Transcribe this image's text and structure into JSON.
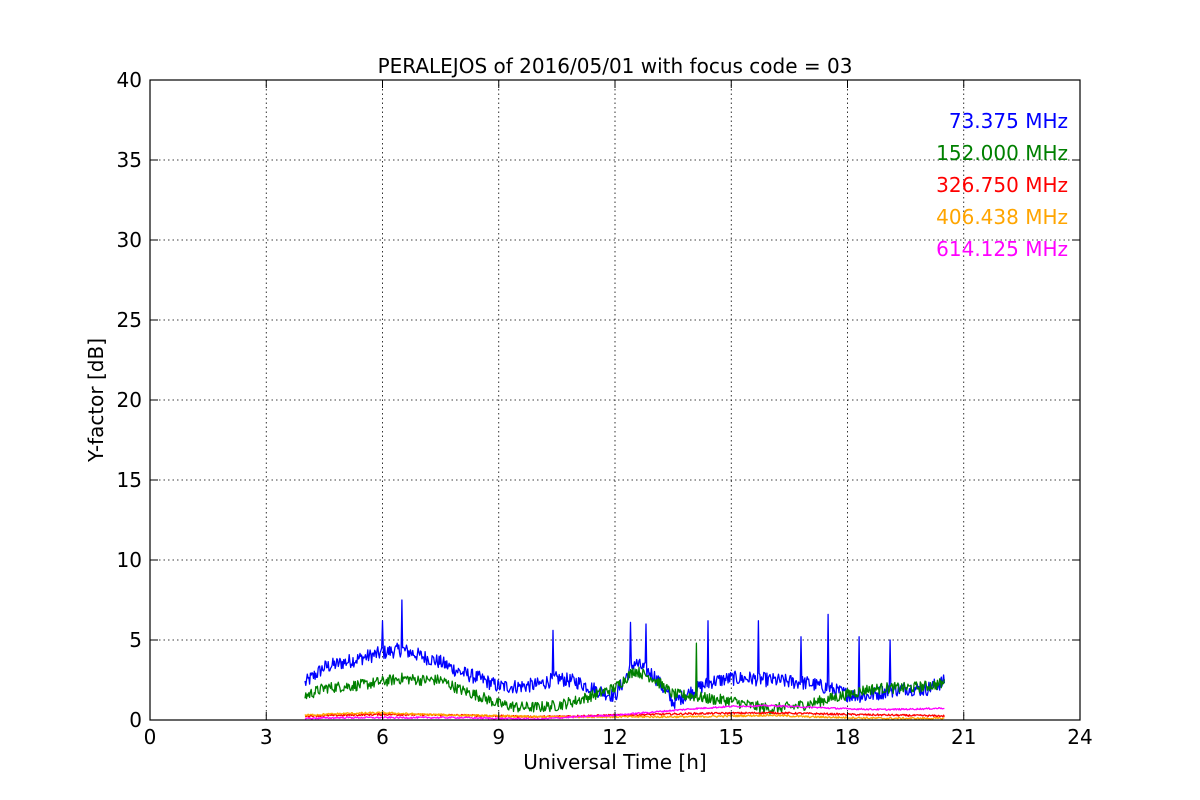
{
  "chart_data": {
    "type": "line",
    "title": "PERALEJOS of 2016/05/01 with focus code = 03",
    "xlabel": "Universal Time [h]",
    "ylabel": "Y-factor [dB]",
    "xlim": [
      0,
      24
    ],
    "ylim": [
      0,
      40
    ],
    "xticks": [
      0,
      3,
      6,
      9,
      12,
      15,
      18,
      21,
      24
    ],
    "yticks": [
      0,
      5,
      10,
      15,
      20,
      25,
      30,
      35,
      40
    ],
    "grid": true,
    "legend_position": "top-right",
    "series": [
      {
        "name": "73.375 MHz",
        "color": "#0000ff",
        "x": [
          4.0,
          4.5,
          5.0,
          5.5,
          6.0,
          6.5,
          7.0,
          7.5,
          8.0,
          8.5,
          9.0,
          9.5,
          10.0,
          10.5,
          11.0,
          11.5,
          12.0,
          12.5,
          13.0,
          13.5,
          14.0,
          14.5,
          15.0,
          15.5,
          16.0,
          16.5,
          17.0,
          17.5,
          18.0,
          18.5,
          19.0,
          19.5,
          20.0,
          20.5
        ],
        "y": [
          2.3,
          3.3,
          3.6,
          3.9,
          4.2,
          4.4,
          4.0,
          3.6,
          3.0,
          2.6,
          2.1,
          2.1,
          2.2,
          2.6,
          2.4,
          1.9,
          1.5,
          3.6,
          2.8,
          1.1,
          1.8,
          2.4,
          2.6,
          2.6,
          2.5,
          2.4,
          2.3,
          2.0,
          1.6,
          1.5,
          1.8,
          2.0,
          1.9,
          2.4
        ],
        "spikes": [
          [
            6.5,
            7.5
          ],
          [
            6.0,
            6.2
          ],
          [
            10.4,
            5.6
          ],
          [
            12.4,
            6.1
          ],
          [
            12.8,
            6.0
          ],
          [
            14.4,
            6.2
          ],
          [
            15.7,
            6.2
          ],
          [
            16.8,
            5.2
          ],
          [
            17.5,
            6.6
          ],
          [
            18.3,
            5.2
          ],
          [
            19.1,
            5.0
          ]
        ]
      },
      {
        "name": "152.000 MHz",
        "color": "#008000",
        "x": [
          4.0,
          4.5,
          5.0,
          5.5,
          6.0,
          6.5,
          7.0,
          7.5,
          8.0,
          8.5,
          9.0,
          9.5,
          10.0,
          10.5,
          11.0,
          11.5,
          12.0,
          12.5,
          13.0,
          13.5,
          14.0,
          14.5,
          15.0,
          15.5,
          16.0,
          16.5,
          17.0,
          17.5,
          18.0,
          18.5,
          19.0,
          19.5,
          20.0,
          20.5
        ],
        "y": [
          1.5,
          2.0,
          2.1,
          2.2,
          2.4,
          2.6,
          2.5,
          2.5,
          1.9,
          1.5,
          1.0,
          0.8,
          0.8,
          0.9,
          1.2,
          1.6,
          2.0,
          3.1,
          2.6,
          1.6,
          1.5,
          1.3,
          1.2,
          0.9,
          0.7,
          0.8,
          1.0,
          1.3,
          1.6,
          1.9,
          2.0,
          2.0,
          2.1,
          2.3
        ],
        "spikes": [
          [
            14.1,
            4.8
          ]
        ]
      },
      {
        "name": "326.750 MHz",
        "color": "#ff0000",
        "x": [
          4.0,
          6.0,
          8.0,
          10.0,
          12.0,
          14.0,
          16.0,
          18.0,
          20.5
        ],
        "y": [
          0.25,
          0.35,
          0.3,
          0.2,
          0.3,
          0.4,
          0.45,
          0.35,
          0.25
        ]
      },
      {
        "name": "406.438 MHz",
        "color": "#ffa500",
        "x": [
          4.0,
          5.0,
          6.0,
          7.0,
          8.0,
          9.0,
          10.0,
          11.0,
          12.0,
          13.0,
          14.0,
          15.0,
          16.0,
          17.0,
          18.0,
          19.0,
          20.0,
          20.5
        ],
        "y": [
          0.3,
          0.4,
          0.45,
          0.35,
          0.3,
          0.25,
          0.2,
          0.2,
          0.2,
          0.2,
          0.2,
          0.25,
          0.3,
          0.2,
          0.15,
          0.1,
          0.1,
          0.1
        ]
      },
      {
        "name": "614.125 MHz",
        "color": "#ff00ff",
        "x": [
          4.0,
          5.0,
          6.0,
          7.0,
          8.0,
          9.0,
          10.0,
          11.0,
          12.0,
          13.0,
          14.0,
          15.0,
          16.0,
          17.0,
          18.0,
          19.0,
          20.0,
          20.5
        ],
        "y": [
          0.1,
          0.15,
          0.15,
          0.15,
          0.15,
          0.1,
          0.05,
          0.2,
          0.3,
          0.5,
          0.7,
          0.85,
          0.9,
          0.8,
          0.7,
          0.65,
          0.7,
          0.75
        ]
      }
    ]
  }
}
